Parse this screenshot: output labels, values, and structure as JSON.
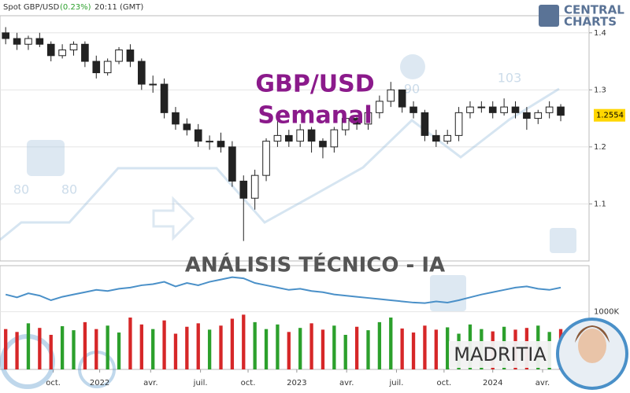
{
  "header": {
    "symbol": "Spot GBP/USD",
    "change": "(0.23%)",
    "time": "20:11 (GMT)"
  },
  "logo": {
    "line1": "CENTRAL",
    "line2": "CHARTS"
  },
  "overlay": {
    "title": "GBP/USD",
    "subtitle": "Semanal",
    "banner": "ANÁLISIS TÉCNICO - IA",
    "brand": "MADRITIA"
  },
  "watermark_labels": [
    "80",
    "80",
    "90",
    "103"
  ],
  "chart_data": [
    {
      "type": "candlestick",
      "up_color": "#ffffff",
      "down_color": "#222222",
      "wick_color": "#222222",
      "last_price": {
        "value": 1.2554,
        "label": "1.2554",
        "color": "#ffd600"
      },
      "xlim": [
        -0.5,
        51.5
      ],
      "ylim": [
        1.0,
        1.43
      ],
      "yticks": [
        1.1,
        1.2,
        1.3,
        1.4
      ],
      "grid": true,
      "open": [
        1.4,
        1.39,
        1.38,
        1.39,
        1.38,
        1.36,
        1.37,
        1.38,
        1.35,
        1.33,
        1.35,
        1.37,
        1.35,
        1.31,
        1.31,
        1.26,
        1.24,
        1.23,
        1.21,
        1.21,
        1.2,
        1.14,
        1.11,
        1.15,
        1.21,
        1.22,
        1.21,
        1.23,
        1.21,
        1.2,
        1.23,
        1.25,
        1.24,
        1.26,
        1.28,
        1.3,
        1.27,
        1.26,
        1.22,
        1.21,
        1.22,
        1.26,
        1.27,
        1.27,
        1.26,
        1.27,
        1.26,
        1.25,
        1.26,
        1.27
      ],
      "high": [
        1.41,
        1.4,
        1.395,
        1.4,
        1.385,
        1.38,
        1.385,
        1.385,
        1.36,
        1.355,
        1.375,
        1.38,
        1.355,
        1.325,
        1.32,
        1.27,
        1.25,
        1.24,
        1.22,
        1.225,
        1.21,
        1.15,
        1.16,
        1.215,
        1.245,
        1.23,
        1.24,
        1.235,
        1.215,
        1.235,
        1.26,
        1.255,
        1.27,
        1.29,
        1.314,
        1.3,
        1.28,
        1.265,
        1.23,
        1.23,
        1.27,
        1.28,
        1.28,
        1.28,
        1.285,
        1.28,
        1.27,
        1.265,
        1.28,
        1.275
      ],
      "low": [
        1.38,
        1.37,
        1.37,
        1.375,
        1.35,
        1.355,
        1.36,
        1.34,
        1.32,
        1.325,
        1.345,
        1.34,
        1.3,
        1.295,
        1.25,
        1.23,
        1.22,
        1.2,
        1.195,
        1.19,
        1.13,
        1.035,
        1.09,
        1.14,
        1.2,
        1.2,
        1.2,
        1.19,
        1.18,
        1.19,
        1.22,
        1.23,
        1.23,
        1.25,
        1.27,
        1.26,
        1.25,
        1.21,
        1.2,
        1.205,
        1.21,
        1.25,
        1.26,
        1.25,
        1.255,
        1.25,
        1.23,
        1.24,
        1.25,
        1.245
      ],
      "close": [
        1.39,
        1.38,
        1.39,
        1.38,
        1.36,
        1.37,
        1.38,
        1.35,
        1.33,
        1.35,
        1.37,
        1.35,
        1.31,
        1.31,
        1.26,
        1.24,
        1.23,
        1.21,
        1.21,
        1.2,
        1.14,
        1.11,
        1.15,
        1.21,
        1.22,
        1.21,
        1.23,
        1.21,
        1.2,
        1.23,
        1.25,
        1.24,
        1.26,
        1.28,
        1.3,
        1.27,
        1.26,
        1.22,
        1.21,
        1.22,
        1.26,
        1.27,
        1.27,
        1.26,
        1.27,
        1.26,
        1.25,
        1.26,
        1.27,
        1.2554
      ]
    },
    {
      "type": "volume",
      "xlim": [
        -0.5,
        51.5
      ],
      "ylim": [
        0,
        1800
      ],
      "yticks": [
        {
          "value": 1000,
          "label": "1000K"
        }
      ],
      "up_color": "#2ca02c",
      "down_color": "#d62728",
      "line_color": "#4a90c8",
      "xticks": [
        {
          "value": 4.2,
          "label": "oct."
        },
        {
          "value": 8.3,
          "label": "2022"
        },
        {
          "value": 12.8,
          "label": "avr."
        },
        {
          "value": 17.2,
          "label": "juil."
        },
        {
          "value": 21.4,
          "label": "oct."
        },
        {
          "value": 25.7,
          "label": "2023"
        },
        {
          "value": 30.1,
          "label": "avr."
        },
        {
          "value": 34.5,
          "label": "juil."
        },
        {
          "value": 38.7,
          "label": "oct."
        },
        {
          "value": 43,
          "label": "2024"
        },
        {
          "value": 47.4,
          "label": "avr."
        }
      ],
      "series": [
        {
          "values": [
            700,
            650,
            800,
            720,
            600,
            750,
            680,
            820,
            700,
            760,
            640,
            900,
            780,
            700,
            850,
            620,
            740,
            800,
            690,
            760,
            880,
            950,
            820,
            700,
            780,
            650,
            720,
            800,
            690,
            760,
            600,
            740,
            680,
            820,
            900,
            710,
            640,
            760,
            690,
            730,
            620,
            780,
            700,
            660,
            740,
            690,
            720,
            760,
            650,
            700
          ]
        },
        {
          "values": [
            1300,
            1250,
            1320,
            1280,
            1200,
            1260,
            1300,
            1340,
            1380,
            1360,
            1400,
            1420,
            1460,
            1480,
            1520,
            1440,
            1500,
            1460,
            1520,
            1560,
            1600,
            1580,
            1500,
            1460,
            1420,
            1380,
            1400,
            1360,
            1340,
            1300,
            1280,
            1260,
            1240,
            1220,
            1200,
            1180,
            1160,
            1150,
            1180,
            1160,
            1200,
            1250,
            1300,
            1340,
            1380,
            1420,
            1440,
            1400,
            1380,
            1420
          ]
        }
      ]
    }
  ]
}
